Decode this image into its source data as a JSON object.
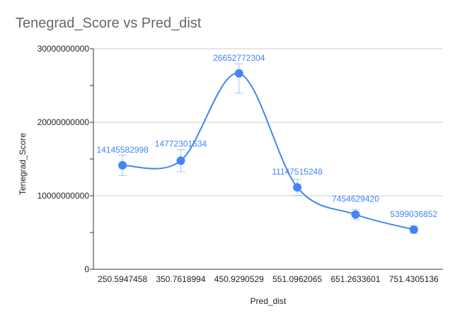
{
  "chart_data": {
    "type": "line",
    "title": "Tenegrad_Score vs Pred_dist",
    "xlabel": "Pred_dist",
    "ylabel": "Tenegrad_Score",
    "categories": [
      "250.5947458",
      "350.7618994",
      "450.9290529",
      "551.0962065",
      "651.2633601",
      "751.4305136"
    ],
    "series": [
      {
        "values": [
          14145582998,
          14772301534,
          26652772304,
          11147515248,
          7454629420,
          5399036852
        ],
        "labels": [
          "14145582998",
          "14772301534",
          "26652772304",
          "11147515248",
          "7454629420",
          "5399036852"
        ],
        "error": [
          1400000000,
          1500000000,
          1300000000,
          1100000000,
          700000000,
          500000000
        ],
        "error_low": [
          1400000000,
          1500000000,
          2700000000,
          1100000000,
          700000000,
          500000000
        ],
        "color": "#4285f4"
      }
    ],
    "ylim": [
      0,
      30000000000
    ],
    "yticks": [
      0,
      10000000000,
      20000000000,
      30000000000
    ],
    "ytick_labels": [
      "0",
      "10000000000",
      "20000000000",
      "30000000000"
    ],
    "smooth": true,
    "grid": true,
    "legend": "none"
  }
}
